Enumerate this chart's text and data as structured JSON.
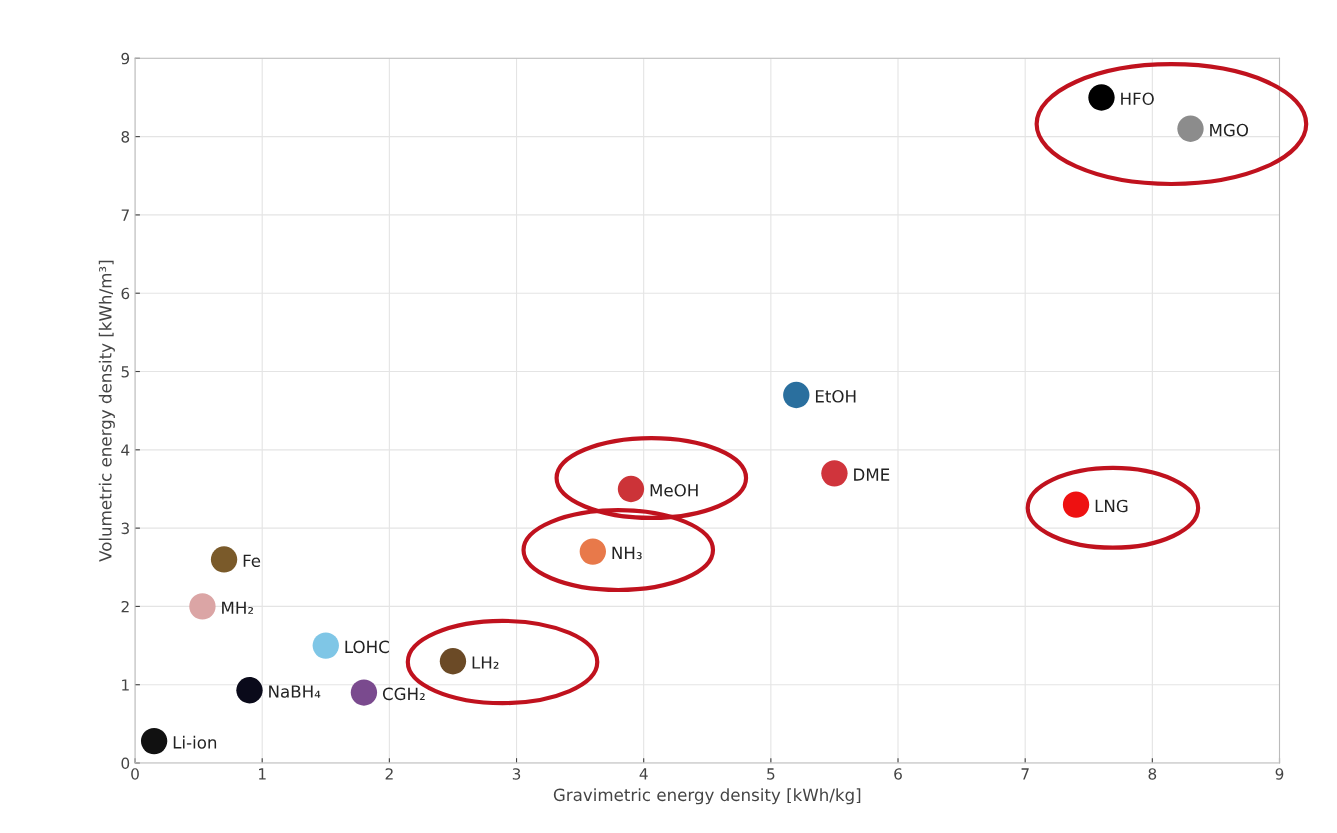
{
  "chart_data": {
    "type": "scatter",
    "xlabel": "Gravimetric energy density [kWh/kg]",
    "ylabel": "Volumetric energy density [kWh/m³]",
    "x": [
      7.6,
      8.3,
      5.2,
      5.5,
      7.4,
      3.9,
      3.6,
      0.7,
      0.53,
      1.5,
      2.5,
      0.9,
      1.8,
      0.15
    ],
    "values": [
      8.5,
      8.1,
      4.7,
      3.7,
      3.3,
      3.5,
      2.7,
      2.6,
      2.0,
      1.5,
      1.3,
      0.93,
      0.9,
      0.28
    ],
    "colors": [
      "#000000",
      "#8c8c8c",
      "#2a6f9e",
      "#d0343c",
      "#ee1111",
      "#cc3338",
      "#e8794a",
      "#7a5a2a",
      "#dba5a5",
      "#7fc6e6",
      "#6b4a26",
      "#0a0a1a",
      "#7a4a8e",
      "#111111"
    ],
    "annotations": [
      {
        "text": "HFO",
        "x": 7.6,
        "y": 8.5
      },
      {
        "text": "MGO",
        "x": 8.3,
        "y": 8.1
      },
      {
        "text": "EtOH",
        "x": 5.2,
        "y": 4.7
      },
      {
        "text": "DME",
        "x": 5.5,
        "y": 3.7
      },
      {
        "text": "LNG",
        "x": 7.4,
        "y": 3.3
      },
      {
        "text": "MeOH",
        "x": 3.9,
        "y": 3.5
      },
      {
        "text": "NH₃",
        "x": 3.6,
        "y": 2.7
      },
      {
        "text": "Fe",
        "x": 0.7,
        "y": 2.6
      },
      {
        "text": "MH₂",
        "x": 0.53,
        "y": 2.0
      },
      {
        "text": "LOHC",
        "x": 1.5,
        "y": 1.5
      },
      {
        "text": "LH₂",
        "x": 2.5,
        "y": 1.3
      },
      {
        "text": "NaBH₄",
        "x": 0.9,
        "y": 0.93
      },
      {
        "text": "CGH₂",
        "x": 1.8,
        "y": 0.9
      },
      {
        "text": "Li-ion",
        "x": 0.15,
        "y": 0.28
      }
    ],
    "xlim": [
      0,
      9
    ],
    "ylim": [
      0,
      9
    ],
    "xticks": [
      0,
      1,
      2,
      3,
      4,
      5,
      6,
      7,
      8,
      9
    ],
    "yticks": [
      0,
      1,
      2,
      3,
      4,
      5,
      6,
      7,
      8,
      9
    ],
    "grid": true,
    "marker": "circle"
  }
}
